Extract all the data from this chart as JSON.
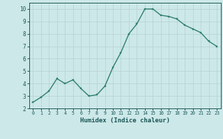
{
  "x": [
    0,
    1,
    2,
    3,
    4,
    5,
    6,
    7,
    8,
    9,
    10,
    11,
    12,
    13,
    14,
    15,
    16,
    17,
    18,
    19,
    20,
    21,
    22,
    23
  ],
  "y": [
    2.5,
    2.9,
    3.4,
    4.4,
    4.0,
    4.3,
    3.6,
    3.0,
    3.1,
    3.8,
    5.3,
    6.5,
    8.0,
    8.8,
    10.0,
    10.0,
    9.5,
    9.4,
    9.2,
    8.7,
    8.4,
    8.1,
    7.4,
    7.0
  ],
  "line_color": "#2e7d6e",
  "marker_color": "#2e7d6e",
  "bg_color": "#cce8e8",
  "grid_color": "#b8d4d4",
  "tick_color": "#1a5555",
  "xlabel": "Humidex (Indice chaleur)",
  "xlim": [
    -0.5,
    23.5
  ],
  "ylim": [
    2,
    10.5
  ],
  "yticks": [
    2,
    3,
    4,
    5,
    6,
    7,
    8,
    9,
    10
  ],
  "xticks": [
    0,
    1,
    2,
    3,
    4,
    5,
    6,
    7,
    8,
    9,
    10,
    11,
    12,
    13,
    14,
    15,
    16,
    17,
    18,
    19,
    20,
    21,
    22,
    23
  ],
  "linewidth": 1.0,
  "markersize": 2.0
}
